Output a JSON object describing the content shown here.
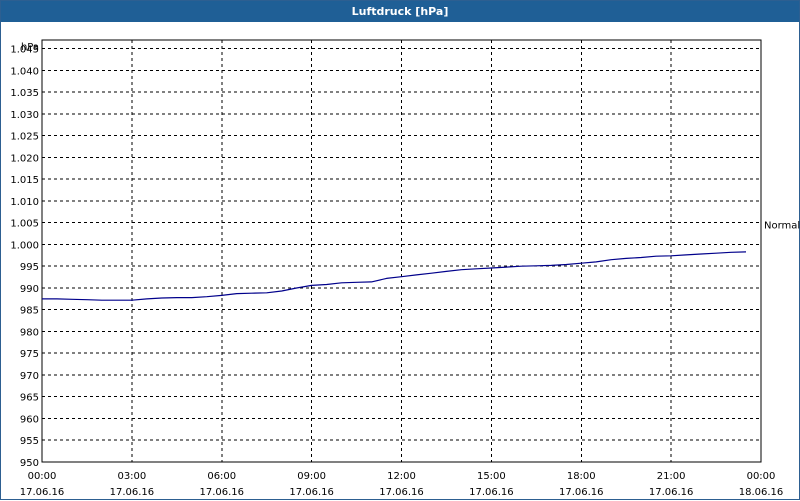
{
  "window": {
    "title": "Luftdruck [hPa]"
  },
  "chart_data": {
    "type": "line",
    "title": "Luftdruck [hPa]",
    "ylabel": "hPa",
    "ylim": [
      950,
      1047
    ],
    "yticks": [
      950,
      955,
      960,
      965,
      970,
      975,
      980,
      985,
      990,
      995,
      1000,
      1005,
      1010,
      1015,
      1020,
      1025,
      1030,
      1035,
      1040,
      1045
    ],
    "ytick_labels": [
      "950",
      "955",
      "960",
      "965",
      "970",
      "975",
      "980",
      "985",
      "990",
      "995",
      "1.000",
      "1.005",
      "1.010",
      "1.015",
      "1.020",
      "1.025",
      "1.030",
      "1.035",
      "1.040",
      "1.045"
    ],
    "xlim": [
      "17.06.16 00:00",
      "18.06.16 00:00"
    ],
    "xtick_labels": [
      {
        "time": "00:00",
        "date": "17.06.16"
      },
      {
        "time": "03:00",
        "date": "17.06.16"
      },
      {
        "time": "06:00",
        "date": "17.06.16"
      },
      {
        "time": "09:00",
        "date": "17.06.16"
      },
      {
        "time": "12:00",
        "date": "17.06.16"
      },
      {
        "time": "15:00",
        "date": "17.06.16"
      },
      {
        "time": "18:00",
        "date": "17.06.16"
      },
      {
        "time": "21:00",
        "date": "17.06.16"
      },
      {
        "time": "00:00",
        "date": "18.06.16"
      }
    ],
    "grid": true,
    "reference_line": {
      "label": "Normal",
      "value": 1004.6
    },
    "series": [
      {
        "color": "#00008b",
        "points": [
          [
            "00:00",
            987.5
          ],
          [
            "00:30",
            987.5
          ],
          [
            "01:00",
            987.4
          ],
          [
            "01:30",
            987.3
          ],
          [
            "02:00",
            987.2
          ],
          [
            "02:30",
            987.2
          ],
          [
            "03:00",
            987.2
          ],
          [
            "03:30",
            987.5
          ],
          [
            "04:00",
            987.7
          ],
          [
            "04:30",
            987.8
          ],
          [
            "05:00",
            987.8
          ],
          [
            "05:30",
            988.0
          ],
          [
            "06:00",
            988.3
          ],
          [
            "06:30",
            988.7
          ],
          [
            "07:00",
            988.8
          ],
          [
            "07:30",
            988.9
          ],
          [
            "08:00",
            989.3
          ],
          [
            "08:30",
            990.0
          ],
          [
            "09:00",
            990.6
          ],
          [
            "09:30",
            990.8
          ],
          [
            "10:00",
            991.2
          ],
          [
            "10:30",
            991.3
          ],
          [
            "11:00",
            991.4
          ],
          [
            "11:30",
            992.2
          ],
          [
            "12:00",
            992.6
          ],
          [
            "12:30",
            993.0
          ],
          [
            "13:00",
            993.4
          ],
          [
            "13:30",
            993.8
          ],
          [
            "14:00",
            994.2
          ],
          [
            "14:30",
            994.4
          ],
          [
            "15:00",
            994.6
          ],
          [
            "15:30",
            994.8
          ],
          [
            "16:00",
            995.0
          ],
          [
            "16:30",
            995.1
          ],
          [
            "17:00",
            995.2
          ],
          [
            "17:30",
            995.4
          ],
          [
            "18:00",
            995.7
          ],
          [
            "18:30",
            996.0
          ],
          [
            "19:00",
            996.5
          ],
          [
            "19:30",
            996.8
          ],
          [
            "20:00",
            997.0
          ],
          [
            "20:30",
            997.3
          ],
          [
            "21:00",
            997.4
          ],
          [
            "21:30",
            997.6
          ],
          [
            "22:00",
            997.8
          ],
          [
            "22:30",
            998.0
          ],
          [
            "23:00",
            998.2
          ],
          [
            "23:30",
            998.3
          ]
        ]
      }
    ]
  }
}
